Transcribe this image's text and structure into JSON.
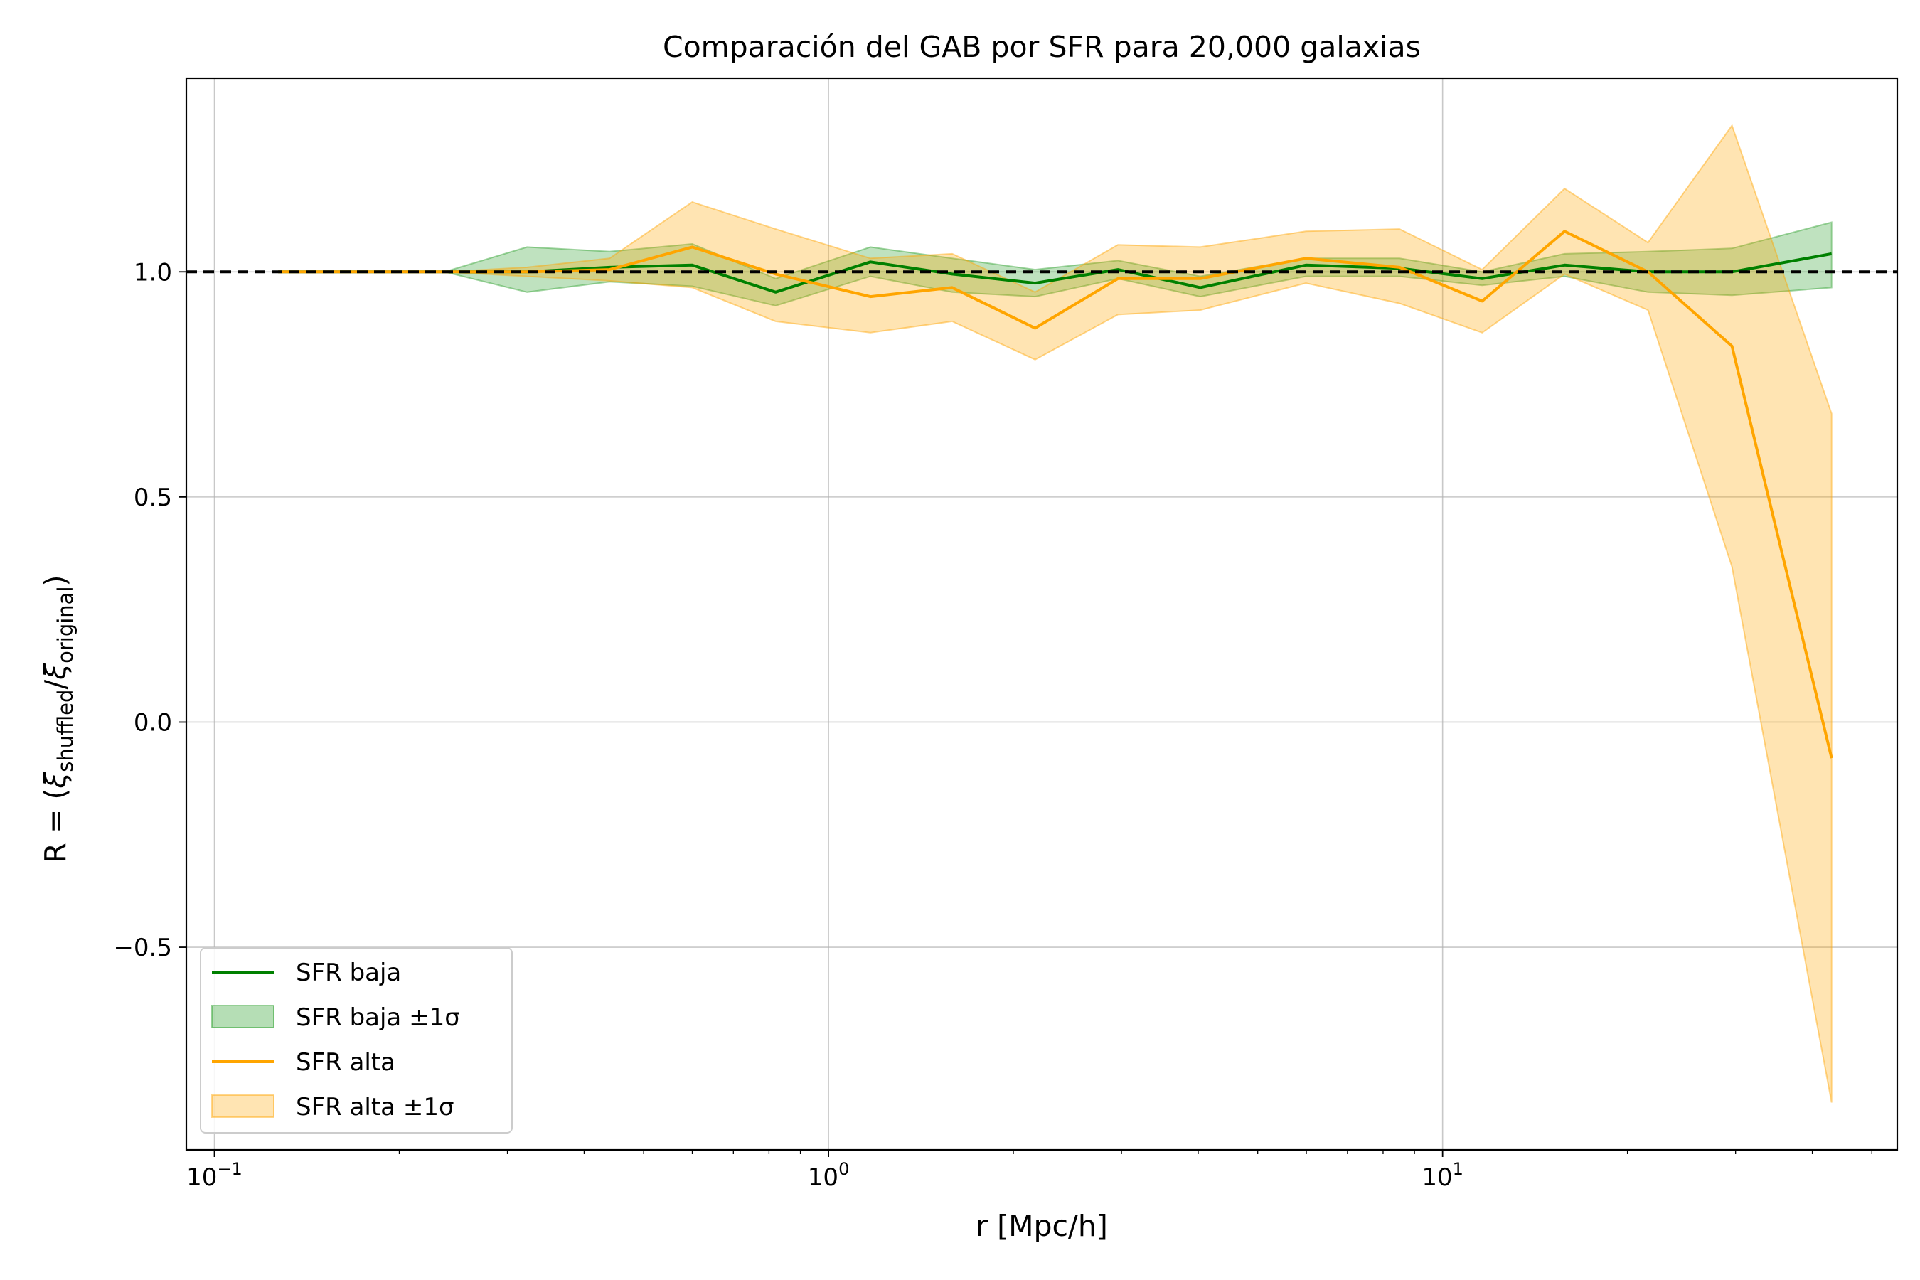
{
  "chart_data": {
    "type": "line",
    "title": "Comparación del GAB por SFR para 20,000 galaxias",
    "xlabel": "r [Mpc/h]",
    "ylabel": "R = (ξshuffled/ξoriginal)",
    "ylabel_parts": {
      "prefix": "R = (",
      "xi": "ξ",
      "sub1": "shuffled",
      "slash": "/",
      "sub2": "original",
      "suffix": ")"
    },
    "xscale": "log",
    "xlim": [
      0.09,
      55
    ],
    "ylim": [
      -0.95,
      1.43
    ],
    "grid": true,
    "x_ticks": [
      {
        "value": 0.1,
        "base": "10",
        "exp": "−1"
      },
      {
        "value": 1,
        "base": "10",
        "exp": "0"
      },
      {
        "value": 10,
        "base": "10",
        "exp": "1"
      }
    ],
    "y_ticks": [
      {
        "value": -0.5,
        "label": "−0.5"
      },
      {
        "value": 0.0,
        "label": "0.0"
      },
      {
        "value": 0.5,
        "label": "0.5"
      },
      {
        "value": 1.0,
        "label": "1.0"
      }
    ],
    "reference_line": {
      "y": 1.0,
      "color": "#000000",
      "style": "dashed"
    },
    "x": [
      0.127,
      0.174,
      0.237,
      0.323,
      0.44,
      0.6,
      0.82,
      1.17,
      1.59,
      2.17,
      2.96,
      4.03,
      5.99,
      8.51,
      11.6,
      15.8,
      21.6,
      29.6,
      43.0
    ],
    "series": [
      {
        "name": "SFR baja",
        "color": "#008000",
        "values": [
          1.0,
          1.0,
          1.0,
          1.0,
          1.01,
          1.015,
          0.955,
          1.022,
          0.995,
          0.975,
          1.005,
          0.965,
          1.015,
          1.008,
          0.985,
          1.015,
          1.0,
          1.0,
          1.04
        ],
        "band": {
          "name": "SFR baja ±1σ",
          "color": "#2ca02c",
          "lower": [
            1.0,
            1.0,
            1.0,
            0.955,
            0.978,
            0.968,
            0.925,
            0.99,
            0.955,
            0.945,
            0.985,
            0.945,
            0.99,
            0.99,
            0.97,
            0.99,
            0.955,
            0.948,
            0.965
          ],
          "upper": [
            1.0,
            1.0,
            1.0,
            1.055,
            1.045,
            1.062,
            0.985,
            1.055,
            1.03,
            1.005,
            1.025,
            0.99,
            1.03,
            1.03,
            1.0,
            1.04,
            1.045,
            1.052,
            1.11
          ]
        }
      },
      {
        "name": "SFR alta",
        "color": "#ffa500",
        "values": [
          1.0,
          1.0,
          1.0,
          1.0,
          1.005,
          1.055,
          0.995,
          0.945,
          0.965,
          0.875,
          0.985,
          0.985,
          1.03,
          1.01,
          0.935,
          1.09,
          1.0,
          0.835,
          -0.08
        ],
        "band": {
          "name": "SFR alta ±1σ",
          "color": "#ffa500",
          "lower": [
            1.0,
            1.0,
            1.0,
            0.99,
            0.98,
            0.965,
            0.89,
            0.865,
            0.89,
            0.805,
            0.905,
            0.915,
            0.975,
            0.93,
            0.865,
            0.995,
            0.915,
            0.345,
            -0.845
          ],
          "upper": [
            1.0,
            1.0,
            1.0,
            1.01,
            1.03,
            1.155,
            1.095,
            1.03,
            1.04,
            0.955,
            1.06,
            1.055,
            1.09,
            1.095,
            1.005,
            1.185,
            1.065,
            1.325,
            0.685
          ]
        }
      }
    ],
    "legend": {
      "position": "lower-left",
      "entries": [
        "SFR baja",
        "SFR baja ±1σ",
        "SFR alta",
        "SFR alta ±1σ"
      ]
    }
  }
}
